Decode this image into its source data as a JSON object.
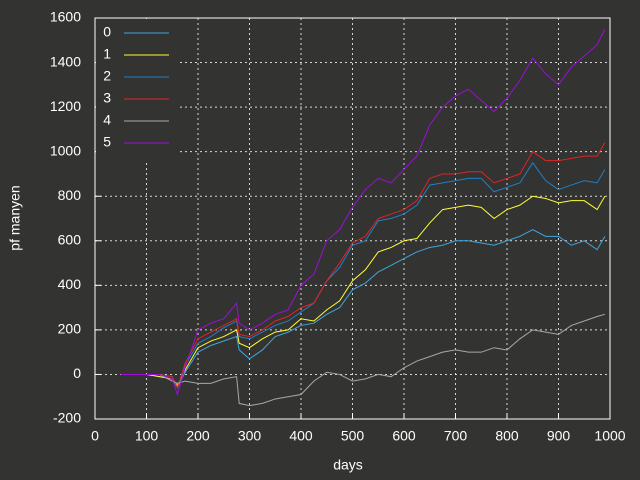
{
  "chart_data": {
    "type": "line",
    "xlabel": "days",
    "ylabel": "pf manyen",
    "x": [
      50,
      100,
      125,
      150,
      160,
      175,
      200,
      225,
      250,
      275,
      280,
      300,
      325,
      350,
      375,
      400,
      425,
      450,
      475,
      500,
      525,
      550,
      575,
      600,
      625,
      650,
      675,
      700,
      725,
      750,
      775,
      800,
      825,
      850,
      875,
      900,
      925,
      950,
      975,
      990
    ],
    "series": [
      {
        "name": "0",
        "color": "#3ea6e0",
        "values": [
          0,
          0,
          -10,
          -20,
          -60,
          10,
          100,
          130,
          150,
          170,
          110,
          70,
          110,
          170,
          190,
          220,
          230,
          270,
          300,
          380,
          410,
          460,
          490,
          520,
          550,
          570,
          580,
          600,
          600,
          590,
          580,
          600,
          620,
          650,
          620,
          620,
          580,
          600,
          560,
          620
        ]
      },
      {
        "name": "1",
        "color": "#ffff33",
        "values": [
          0,
          0,
          -10,
          -20,
          -50,
          20,
          120,
          150,
          170,
          200,
          140,
          120,
          160,
          190,
          200,
          250,
          240,
          290,
          330,
          420,
          470,
          550,
          570,
          600,
          610,
          680,
          740,
          750,
          760,
          750,
          700,
          740,
          760,
          800,
          790,
          770,
          780,
          780,
          740,
          800
        ]
      },
      {
        "name": "2",
        "color": "#1f7fc8",
        "values": [
          0,
          0,
          0,
          -10,
          -60,
          40,
          140,
          170,
          210,
          240,
          170,
          160,
          190,
          220,
          240,
          280,
          320,
          420,
          480,
          580,
          600,
          690,
          700,
          720,
          760,
          850,
          860,
          870,
          880,
          880,
          820,
          840,
          860,
          950,
          870,
          830,
          850,
          870,
          860,
          920
        ]
      },
      {
        "name": "3",
        "color": "#e02424",
        "values": [
          0,
          0,
          0,
          -10,
          -60,
          50,
          160,
          190,
          220,
          250,
          180,
          170,
          200,
          240,
          260,
          300,
          320,
          420,
          500,
          590,
          620,
          700,
          720,
          740,
          780,
          880,
          900,
          900,
          910,
          910,
          860,
          880,
          900,
          1000,
          960,
          960,
          970,
          980,
          980,
          1040
        ]
      },
      {
        "name": "4",
        "color": "#a8a8a8",
        "values": [
          0,
          0,
          0,
          -30,
          -40,
          -30,
          -40,
          -40,
          -20,
          -10,
          -130,
          -140,
          -130,
          -110,
          -100,
          -90,
          -30,
          10,
          0,
          -30,
          -20,
          0,
          -10,
          30,
          60,
          80,
          100,
          110,
          100,
          100,
          120,
          110,
          160,
          200,
          190,
          180,
          220,
          240,
          260,
          270
        ]
      },
      {
        "name": "5",
        "color": "#9a10d8",
        "values": [
          0,
          0,
          0,
          -20,
          -90,
          30,
          200,
          230,
          250,
          320,
          230,
          200,
          230,
          270,
          290,
          400,
          450,
          600,
          650,
          750,
          830,
          880,
          860,
          920,
          980,
          1120,
          1200,
          1250,
          1280,
          1230,
          1180,
          1240,
          1320,
          1420,
          1350,
          1300,
          1380,
          1430,
          1480,
          1550
        ]
      }
    ],
    "xlim": [
      0,
      1000
    ],
    "xticks": [
      0,
      100,
      200,
      300,
      400,
      500,
      600,
      700,
      800,
      900,
      1000
    ],
    "ylim": [
      -200,
      1600
    ],
    "yticks": [
      -200,
      0,
      200,
      400,
      600,
      800,
      1000,
      1200,
      1400,
      1600
    ],
    "grid": true,
    "legend": "upper left"
  }
}
